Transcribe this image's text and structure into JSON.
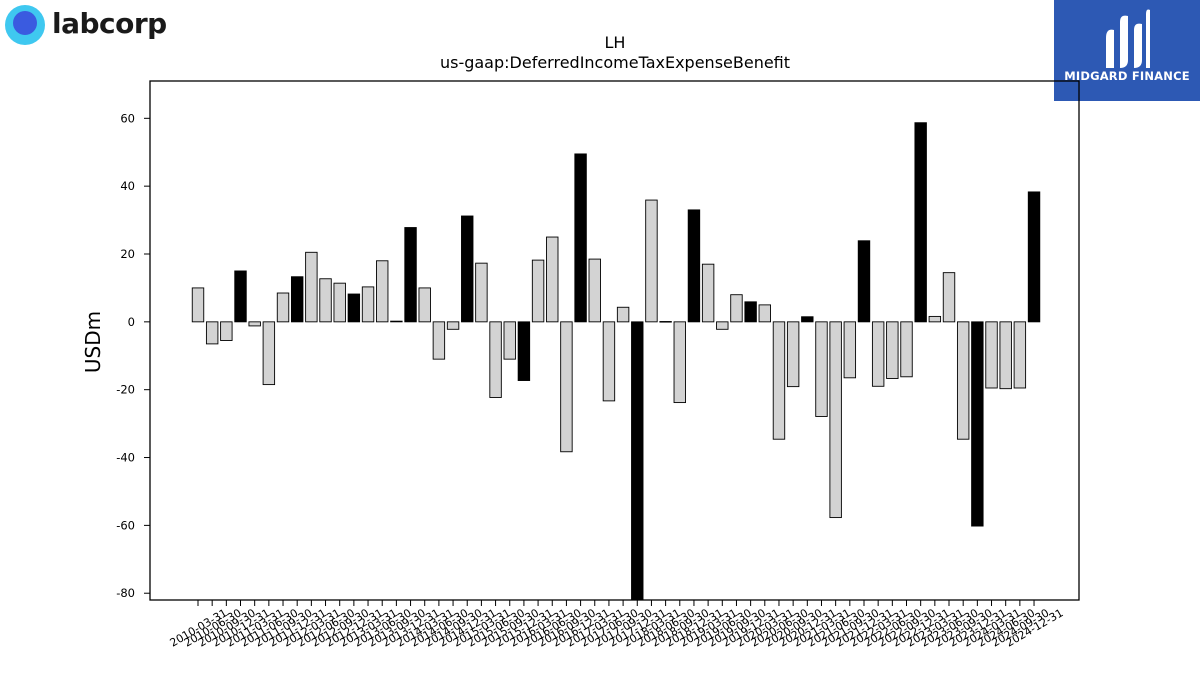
{
  "header": {
    "left_logo_text": "labcorp",
    "right_logo_text": "MIDGARD FINANCE"
  },
  "colors": {
    "bar_positive_dark": "#000000",
    "bar_light": "#d3d3d3",
    "brand_blue": "#2d59b4"
  },
  "chart_data": {
    "type": "bar",
    "title": "LH",
    "subtitle": "us-gaap:DeferredIncomeTaxExpenseBenefit",
    "ylabel": "USDm",
    "xlabel": "",
    "ylim": [
      -82,
      71
    ],
    "yticks": [
      -80,
      -60,
      -40,
      -20,
      0,
      20,
      40,
      60
    ],
    "categories": [
      "2010-03-31",
      "2010-06-30",
      "2010-09-30",
      "2010-12-31",
      "2011-03-31",
      "2011-06-30",
      "2011-09-30",
      "2011-12-31",
      "2012-03-31",
      "2012-06-30",
      "2012-09-30",
      "2012-12-31",
      "2013-03-31",
      "2013-06-30",
      "2013-09-30",
      "2013-12-31",
      "2014-03-31",
      "2014-06-30",
      "2014-09-30",
      "2014-12-31",
      "2015-03-31",
      "2015-06-30",
      "2015-09-30",
      "2015-12-31",
      "2016-03-31",
      "2016-06-30",
      "2016-09-30",
      "2016-12-31",
      "2017-03-31",
      "2017-06-30",
      "2017-09-30",
      "2017-12-31",
      "2018-03-31",
      "2018-06-30",
      "2018-09-30",
      "2018-12-31",
      "2019-03-31",
      "2019-06-30",
      "2019-09-30",
      "2019-12-31",
      "2020-03-31",
      "2020-06-30",
      "2020-09-30",
      "2020-12-31",
      "2021-03-31",
      "2021-06-30",
      "2021-09-30",
      "2021-12-31",
      "2022-03-31",
      "2022-06-30",
      "2022-09-30",
      "2022-12-31",
      "2023-03-31",
      "2023-06-30",
      "2023-09-30",
      "2023-12-31",
      "2024-03-31",
      "2024-06-30",
      "2024-09-30",
      "2024-12-31"
    ],
    "values": [
      10,
      -6.5,
      -5.5,
      15,
      -1.2,
      -18.5,
      8.5,
      13.3,
      20.5,
      12.7,
      11.4,
      8.2,
      10.3,
      18,
      0.2,
      27.8,
      10,
      -11,
      -2.2,
      31.2,
      17.3,
      -22.3,
      -11,
      -17.3,
      18.2,
      25,
      -38.3,
      49.5,
      18.5,
      -23.3,
      4.3,
      -82,
      35.9,
      0.1,
      -23.8,
      33,
      17,
      -2.2,
      8,
      5.9,
      5,
      -34.6,
      -19.1,
      1.5,
      -27.9,
      -57.7,
      -16.5,
      23.9,
      -19,
      -16.7,
      -16.2,
      58.7,
      1.6,
      14.5,
      -34.6,
      -60.2,
      -19.5,
      -19.7,
      -19.5,
      38.3
    ],
    "dark_bars": [
      3,
      7,
      11,
      15,
      19,
      23,
      27,
      31,
      35,
      39,
      43,
      47,
      51,
      55,
      59
    ],
    "grid": false,
    "legend": "none"
  }
}
